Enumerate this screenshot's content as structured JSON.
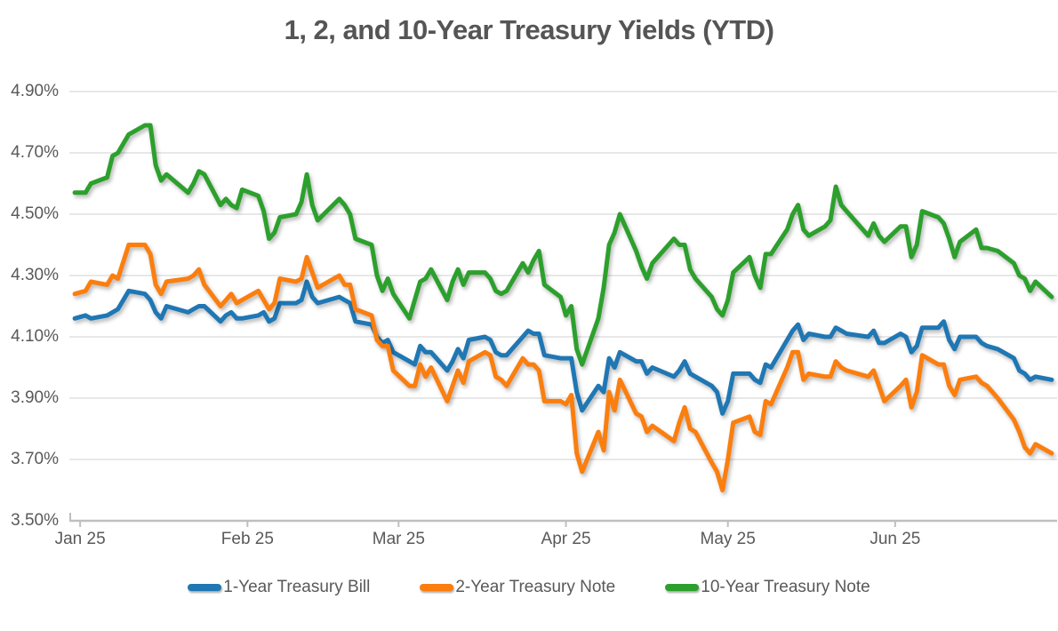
{
  "page": {
    "background": "#FFFFFF"
  },
  "chart_data": {
    "type": "line",
    "title": "1, 2, and 10-Year Treasury Yields (YTD)",
    "xlabel": "",
    "ylabel": "",
    "ylim": [
      3.5,
      4.9
    ],
    "x_domain": [
      "2024-12-30",
      "2025-07-01"
    ],
    "grid": "horizontal",
    "legend_position": "bottom",
    "grid_color": "#D9D9D9",
    "axis_color": "#BFBFBF",
    "text_color": "#595959",
    "yticks": [
      {
        "value": 4.9,
        "label": "4.90%"
      },
      {
        "value": 4.7,
        "label": "4.70%"
      },
      {
        "value": 4.5,
        "label": "4.50%"
      },
      {
        "value": 4.3,
        "label": "4.30%"
      },
      {
        "value": 4.1,
        "label": "4.10%"
      },
      {
        "value": 3.9,
        "label": "3.90%"
      },
      {
        "value": 3.7,
        "label": "3.70%"
      },
      {
        "value": 3.5,
        "label": "3.50%"
      }
    ],
    "xticks": [
      {
        "date": "2025-01-01",
        "label": "Jan 25"
      },
      {
        "date": "2025-02-01",
        "label": "Feb 25"
      },
      {
        "date": "2025-03-01",
        "label": "Mar 25"
      },
      {
        "date": "2025-04-01",
        "label": "Apr 25"
      },
      {
        "date": "2025-05-01",
        "label": "May 25"
      },
      {
        "date": "2025-06-01",
        "label": "Jun 25"
      }
    ],
    "dates": [
      "2024-12-31",
      "2025-01-02",
      "2025-01-03",
      "2025-01-06",
      "2025-01-07",
      "2025-01-08",
      "2025-01-10",
      "2025-01-13",
      "2025-01-14",
      "2025-01-15",
      "2025-01-16",
      "2025-01-17",
      "2025-01-21",
      "2025-01-22",
      "2025-01-23",
      "2025-01-24",
      "2025-01-27",
      "2025-01-28",
      "2025-01-29",
      "2025-01-30",
      "2025-01-31",
      "2025-02-03",
      "2025-02-04",
      "2025-02-05",
      "2025-02-06",
      "2025-02-07",
      "2025-02-10",
      "2025-02-11",
      "2025-02-12",
      "2025-02-13",
      "2025-02-14",
      "2025-02-18",
      "2025-02-19",
      "2025-02-20",
      "2025-02-21",
      "2025-02-24",
      "2025-02-25",
      "2025-02-26",
      "2025-02-27",
      "2025-02-28",
      "2025-03-03",
      "2025-03-04",
      "2025-03-05",
      "2025-03-06",
      "2025-03-07",
      "2025-03-10",
      "2025-03-11",
      "2025-03-12",
      "2025-03-13",
      "2025-03-14",
      "2025-03-17",
      "2025-03-18",
      "2025-03-19",
      "2025-03-20",
      "2025-03-21",
      "2025-03-24",
      "2025-03-25",
      "2025-03-26",
      "2025-03-27",
      "2025-03-28",
      "2025-03-31",
      "2025-04-01",
      "2025-04-02",
      "2025-04-03",
      "2025-04-04",
      "2025-04-07",
      "2025-04-08",
      "2025-04-09",
      "2025-04-10",
      "2025-04-11",
      "2025-04-14",
      "2025-04-15",
      "2025-04-16",
      "2025-04-17",
      "2025-04-21",
      "2025-04-22",
      "2025-04-23",
      "2025-04-24",
      "2025-04-25",
      "2025-04-28",
      "2025-04-29",
      "2025-04-30",
      "2025-05-01",
      "2025-05-02",
      "2025-05-05",
      "2025-05-06",
      "2025-05-07",
      "2025-05-08",
      "2025-05-09",
      "2025-05-12",
      "2025-05-13",
      "2025-05-14",
      "2025-05-15",
      "2025-05-16",
      "2025-05-19",
      "2025-05-20",
      "2025-05-21",
      "2025-05-22",
      "2025-05-23",
      "2025-05-27",
      "2025-05-28",
      "2025-05-29",
      "2025-05-30",
      "2025-06-02",
      "2025-06-03",
      "2025-06-04",
      "2025-06-05",
      "2025-06-06",
      "2025-06-09",
      "2025-06-10",
      "2025-06-11",
      "2025-06-12",
      "2025-06-13",
      "2025-06-16",
      "2025-06-17",
      "2025-06-18",
      "2025-06-20",
      "2025-06-23",
      "2025-06-24",
      "2025-06-25",
      "2025-06-26",
      "2025-06-27",
      "2025-06-30"
    ],
    "series": [
      {
        "name": "1-Year Treasury Bill",
        "color": "#1F77B4",
        "values": [
          4.16,
          4.17,
          4.16,
          4.17,
          4.18,
          4.19,
          4.25,
          4.24,
          4.22,
          4.18,
          4.16,
          4.2,
          4.18,
          4.19,
          4.2,
          4.2,
          4.15,
          4.17,
          4.18,
          4.16,
          4.16,
          4.17,
          4.18,
          4.15,
          4.16,
          4.21,
          4.21,
          4.22,
          4.28,
          4.23,
          4.21,
          4.23,
          4.22,
          4.21,
          4.15,
          4.14,
          4.1,
          4.08,
          4.09,
          4.05,
          4.02,
          4.01,
          4.07,
          4.05,
          4.05,
          3.99,
          4.02,
          4.06,
          4.03,
          4.09,
          4.1,
          4.09,
          4.05,
          4.04,
          4.04,
          4.1,
          4.12,
          4.11,
          4.11,
          4.04,
          4.03,
          4.03,
          4.03,
          3.92,
          3.86,
          3.94,
          3.92,
          4.03,
          4.0,
          4.05,
          4.02,
          4.02,
          3.98,
          4.0,
          3.97,
          3.99,
          4.02,
          3.98,
          3.97,
          3.94,
          3.92,
          3.85,
          3.89,
          3.98,
          3.98,
          3.96,
          3.95,
          4.01,
          4.0,
          4.09,
          4.12,
          4.14,
          4.09,
          4.11,
          4.1,
          4.1,
          4.13,
          4.12,
          4.11,
          4.1,
          4.12,
          4.08,
          4.08,
          4.11,
          4.1,
          4.05,
          4.07,
          4.13,
          4.13,
          4.15,
          4.09,
          4.06,
          4.1,
          4.1,
          4.08,
          4.07,
          4.06,
          4.03,
          3.99,
          3.98,
          3.96,
          3.97,
          3.96
        ]
      },
      {
        "name": "2-Year Treasury Note",
        "color": "#FB7E0E",
        "values": [
          4.24,
          4.25,
          4.28,
          4.27,
          4.3,
          4.29,
          4.4,
          4.4,
          4.37,
          4.27,
          4.24,
          4.28,
          4.29,
          4.3,
          4.32,
          4.27,
          4.2,
          4.22,
          4.24,
          4.21,
          4.22,
          4.25,
          4.22,
          4.19,
          4.21,
          4.29,
          4.28,
          4.29,
          4.36,
          4.31,
          4.26,
          4.3,
          4.27,
          4.27,
          4.19,
          4.17,
          4.09,
          4.07,
          4.07,
          3.99,
          3.94,
          3.94,
          4.01,
          3.97,
          4.0,
          3.89,
          3.94,
          3.99,
          3.95,
          4.02,
          4.05,
          4.04,
          3.97,
          3.96,
          3.94,
          4.03,
          4.01,
          4.01,
          3.99,
          3.89,
          3.89,
          3.88,
          3.91,
          3.72,
          3.66,
          3.79,
          3.73,
          3.92,
          3.86,
          3.96,
          3.85,
          3.84,
          3.79,
          3.81,
          3.76,
          3.82,
          3.87,
          3.8,
          3.79,
          3.69,
          3.66,
          3.6,
          3.7,
          3.82,
          3.84,
          3.79,
          3.78,
          3.89,
          3.88,
          4.0,
          4.05,
          4.05,
          3.96,
          3.98,
          3.97,
          3.97,
          4.02,
          4.0,
          3.99,
          3.97,
          3.99,
          3.94,
          3.89,
          3.94,
          3.96,
          3.87,
          3.92,
          4.04,
          4.01,
          4.01,
          3.94,
          3.91,
          3.96,
          3.97,
          3.95,
          3.94,
          3.9,
          3.83,
          3.79,
          3.74,
          3.72,
          3.75,
          3.72
        ]
      },
      {
        "name": "10-Year Treasury Note",
        "color": "#2CA02C",
        "values": [
          4.57,
          4.57,
          4.6,
          4.62,
          4.69,
          4.7,
          4.76,
          4.79,
          4.79,
          4.66,
          4.61,
          4.63,
          4.57,
          4.6,
          4.64,
          4.63,
          4.53,
          4.55,
          4.53,
          4.52,
          4.58,
          4.56,
          4.51,
          4.42,
          4.44,
          4.49,
          4.5,
          4.54,
          4.63,
          4.53,
          4.48,
          4.55,
          4.53,
          4.5,
          4.42,
          4.4,
          4.3,
          4.25,
          4.29,
          4.24,
          4.16,
          4.22,
          4.28,
          4.29,
          4.32,
          4.22,
          4.28,
          4.32,
          4.27,
          4.31,
          4.31,
          4.29,
          4.25,
          4.24,
          4.25,
          4.34,
          4.31,
          4.35,
          4.38,
          4.27,
          4.23,
          4.17,
          4.2,
          4.06,
          4.01,
          4.16,
          4.26,
          4.4,
          4.44,
          4.5,
          4.38,
          4.33,
          4.29,
          4.34,
          4.42,
          4.4,
          4.4,
          4.32,
          4.29,
          4.23,
          4.19,
          4.17,
          4.22,
          4.31,
          4.36,
          4.3,
          4.26,
          4.37,
          4.37,
          4.45,
          4.5,
          4.53,
          4.45,
          4.43,
          4.46,
          4.48,
          4.59,
          4.53,
          4.51,
          4.43,
          4.47,
          4.43,
          4.41,
          4.46,
          4.46,
          4.36,
          4.4,
          4.51,
          4.49,
          4.47,
          4.42,
          4.36,
          4.41,
          4.45,
          4.39,
          4.39,
          4.38,
          4.34,
          4.3,
          4.29,
          4.25,
          4.28,
          4.23
        ]
      }
    ]
  }
}
